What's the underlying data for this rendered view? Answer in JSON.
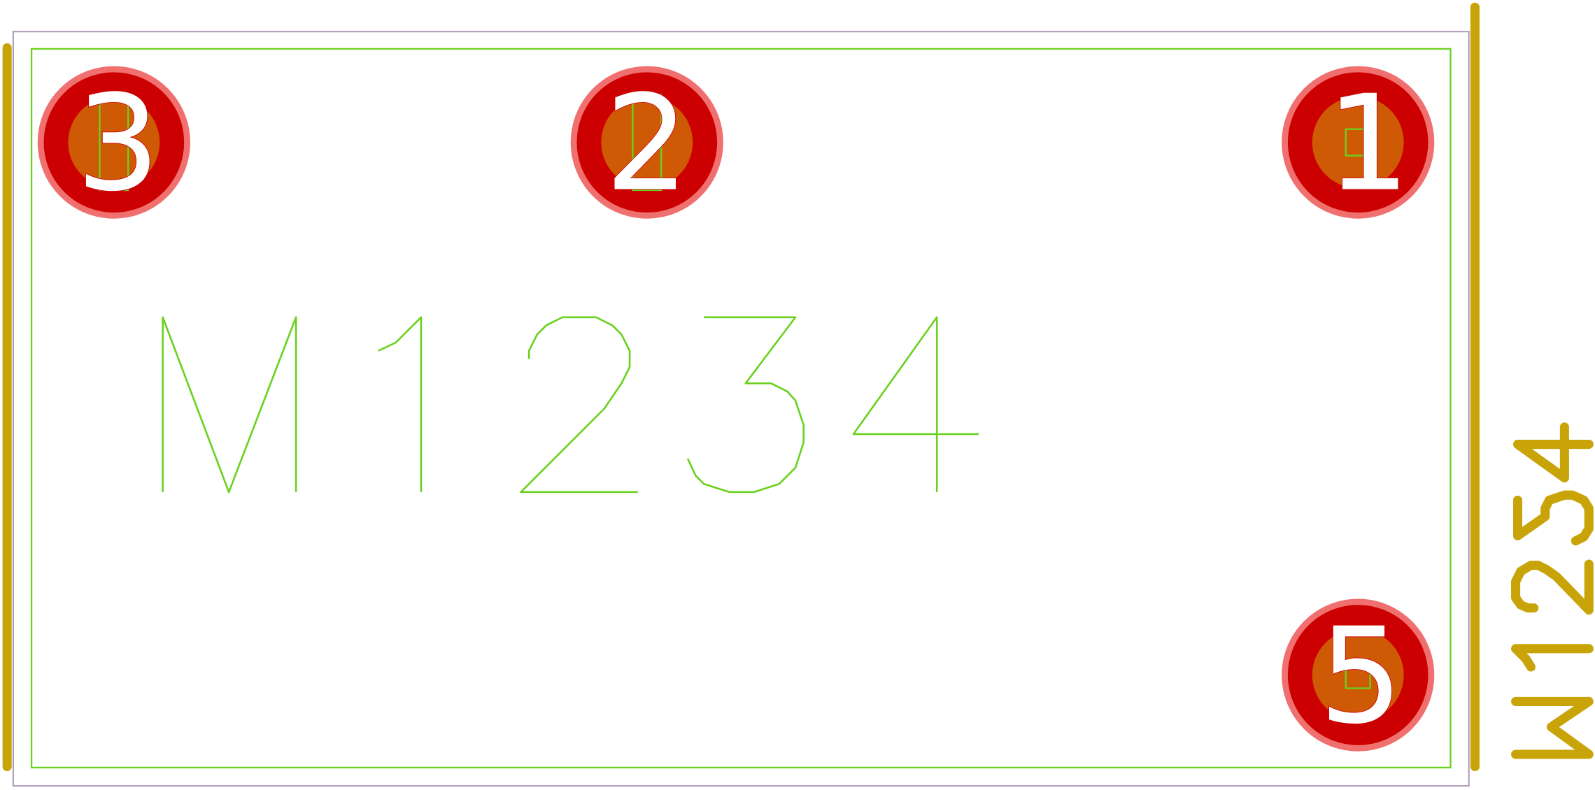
{
  "footprint": {
    "fab_reference": "M1234",
    "silk_reference": "M1234",
    "pads": [
      {
        "number": "3"
      },
      {
        "number": "2"
      },
      {
        "number": "1"
      },
      {
        "number": "5"
      }
    ]
  },
  "colors": {
    "background": "#ffffff",
    "courtyard": "#b2a0c0",
    "fab": "#6ad11f",
    "silkscreen": "#c8a408",
    "pad_copper": "#cc0000",
    "pad_ring": "#f07070",
    "drill": "#cf5a05",
    "pad_number": "#ffffff"
  }
}
